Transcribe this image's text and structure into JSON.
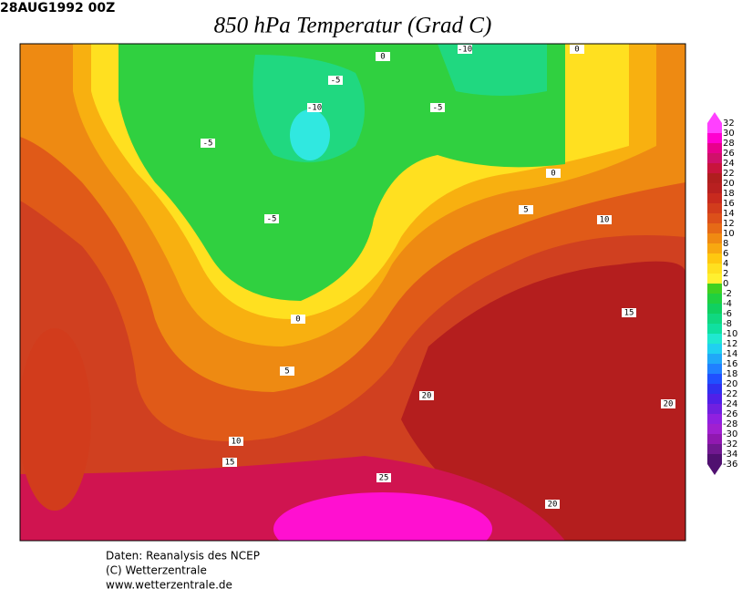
{
  "header": {
    "date": "28AUG1992 00Z",
    "title": "850 hPa Temperatur (Grad C)"
  },
  "colorbar": {
    "ticks": [
      32,
      30,
      28,
      26,
      24,
      22,
      20,
      18,
      16,
      14,
      12,
      10,
      8,
      6,
      4,
      2,
      0,
      -2,
      -4,
      -6,
      -8,
      -10,
      -12,
      -14,
      -16,
      -18,
      -20,
      -22,
      -24,
      -26,
      -28,
      -30,
      -32,
      -34,
      -36
    ],
    "band_colors": [
      "#ff40ff",
      "#ff00d0",
      "#e8008c",
      "#d0106a",
      "#c8143c",
      "#b01e1e",
      "#b82020",
      "#c82a1e",
      "#d23c1c",
      "#dc501a",
      "#e66a16",
      "#f08a12",
      "#f8a810",
      "#ffc810",
      "#ffe020",
      "#fff030",
      "#40d020",
      "#20d040",
      "#10d060",
      "#10d880",
      "#10e0a0",
      "#20e8d0",
      "#20d0f0",
      "#20a8f8",
      "#2080ff",
      "#2050ff",
      "#3030f0",
      "#5020e8",
      "#7020e0",
      "#9020e0",
      "#a020d0",
      "#9018b0",
      "#701890",
      "#501070"
    ]
  },
  "contour_labels": [
    -10,
    0,
    0,
    -5,
    -5,
    -10,
    -5,
    0,
    5,
    10,
    -5,
    0,
    15,
    5,
    20,
    20,
    10,
    15,
    25,
    20
  ],
  "footer": [
    "Daten: Reanalysis des NCEP",
    "(C) Wetterzentrale",
    "www.wetterzentrale.de"
  ]
}
